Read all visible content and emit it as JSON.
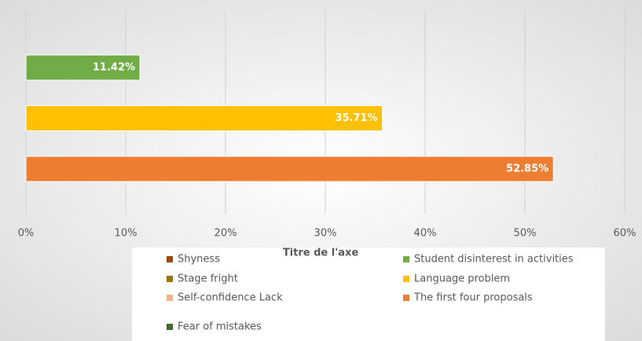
{
  "chart_data": {
    "type": "bar",
    "orientation": "horizontal",
    "x_label": "Titre de l'axe",
    "series": [
      {
        "name": "Shyness",
        "color": "#9e480e",
        "values": [
          null
        ]
      },
      {
        "name": "Student disinterest in activities",
        "color": "#70ad47",
        "values": [
          11.42
        ],
        "value_labels": [
          "11.42%"
        ]
      },
      {
        "name": "Stage fright",
        "color": "#997300",
        "values": [
          null
        ]
      },
      {
        "name": "Language problem",
        "color": "#ffc000",
        "values": [
          35.71
        ],
        "value_labels": [
          "35.71%"
        ]
      },
      {
        "name": "Self-confidence Lack",
        "color": "#f4b183",
        "values": [
          null
        ]
      },
      {
        "name": "The first four proposals",
        "color": "#ed7d31",
        "values": [
          52.85
        ],
        "value_labels": [
          "52.85%"
        ]
      },
      {
        "name": "Fear of mistakes",
        "color": "#43682b",
        "values": [
          null
        ]
      }
    ],
    "xlim": [
      0,
      60
    ],
    "xticks": [
      {
        "value": 0,
        "label": "0%"
      },
      {
        "value": 10,
        "label": "10%"
      },
      {
        "value": 20,
        "label": "20%"
      },
      {
        "value": 30,
        "label": "30%"
      },
      {
        "value": 40,
        "label": "40%"
      },
      {
        "value": 50,
        "label": "50%"
      },
      {
        "value": 60,
        "label": "60%"
      }
    ],
    "grid": true,
    "legend": "bottom"
  }
}
